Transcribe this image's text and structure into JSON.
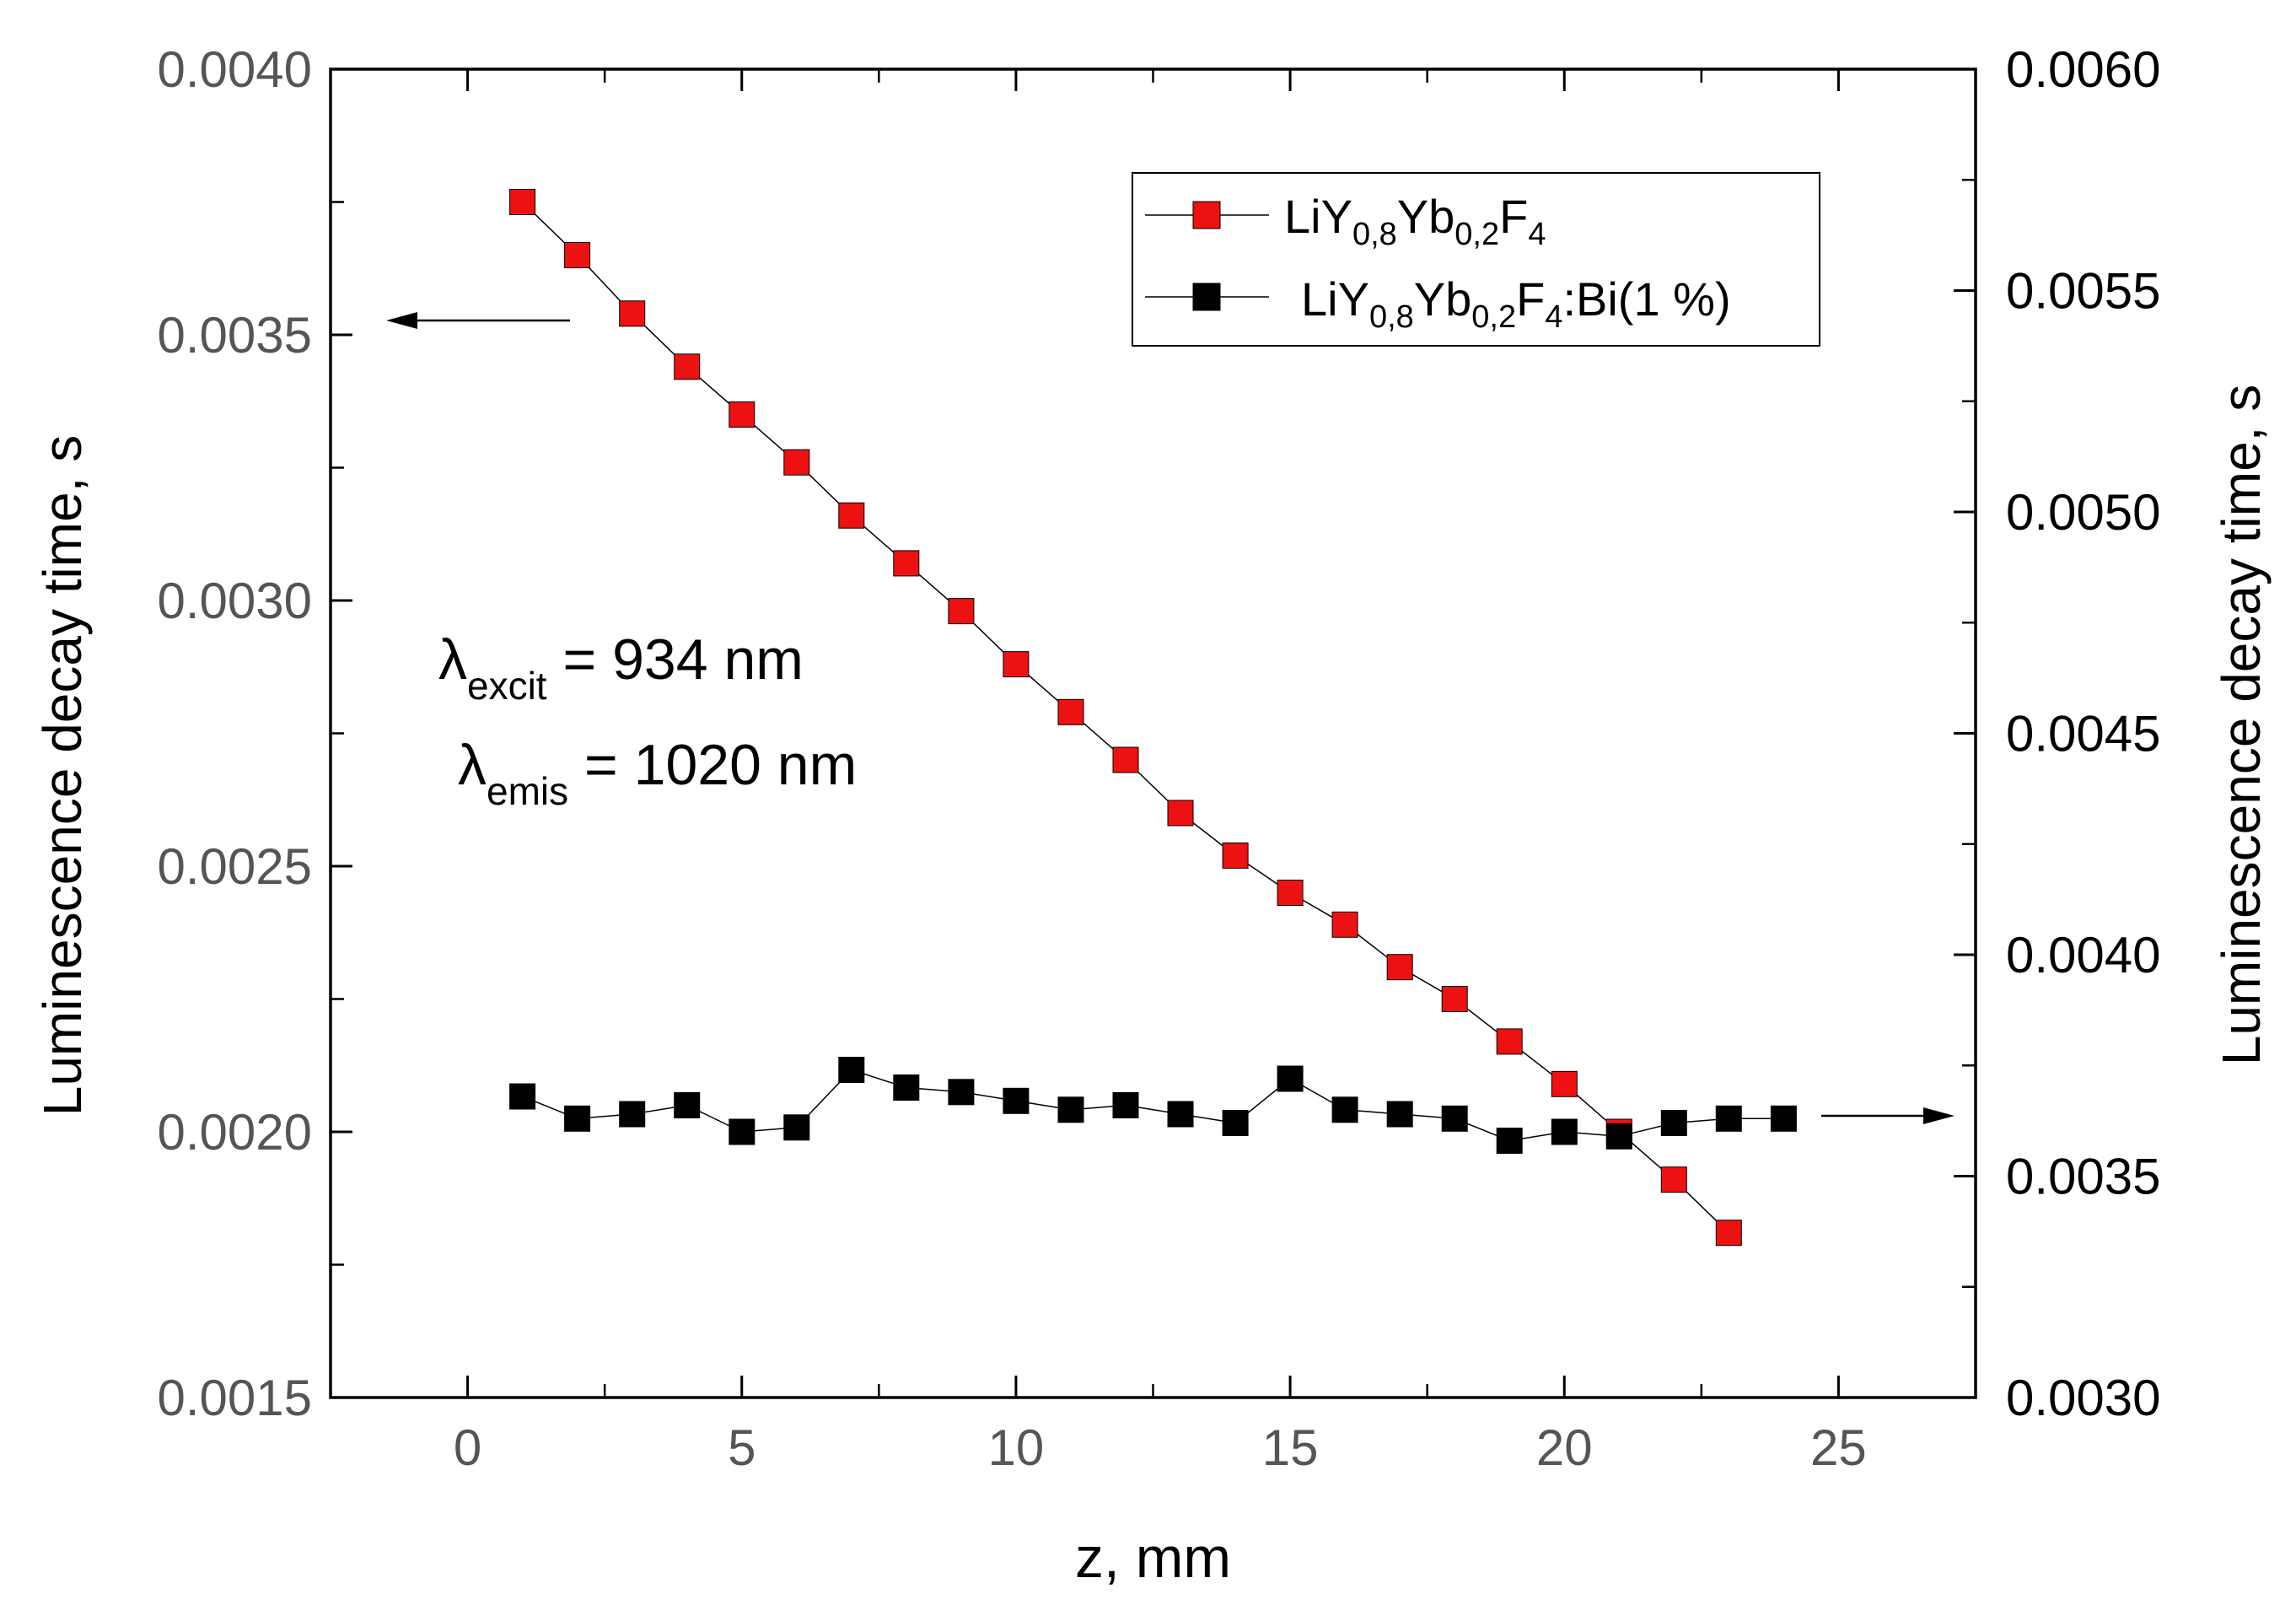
{
  "chart_data": {
    "type": "scatter",
    "xlabel": "z, mm",
    "ylabel_left": "Luminescence decay time, s",
    "ylabel_right": "Luminescence decay time, s",
    "xlim": [
      -2.5,
      27.5
    ],
    "ylim_left": [
      0.0015,
      0.004
    ],
    "ylim_right": [
      0.003,
      0.006
    ],
    "x_ticks": [
      "0",
      "5",
      "10",
      "15",
      "20",
      "25"
    ],
    "y_ticks_left": [
      "0.0015",
      "0.0020",
      "0.0025",
      "0.0030",
      "0.0035",
      "0.0040"
    ],
    "y_ticks_right": [
      "0.0030",
      "0.0035",
      "0.0040",
      "0.0045",
      "0.0050",
      "0.0055",
      "0.0060"
    ],
    "series": [
      {
        "name_parts": [
          "LiY",
          "0,8",
          "Yb",
          "0,2",
          "F",
          "4",
          ""
        ],
        "axis": "left",
        "color": "#ee1111",
        "x": [
          1,
          2,
          3,
          4,
          5,
          6,
          7,
          8,
          9,
          10,
          11,
          12,
          13,
          14,
          15,
          16,
          17,
          18,
          19,
          20,
          21,
          22,
          23
        ],
        "y": [
          0.00375,
          0.00365,
          0.00354,
          0.00344,
          0.00335,
          0.00326,
          0.00316,
          0.00307,
          0.00298,
          0.00288,
          0.00279,
          0.0027,
          0.0026,
          0.00252,
          0.00245,
          0.00239,
          0.00231,
          0.00225,
          0.00217,
          0.00209,
          0.002,
          0.00191,
          0.00181
        ]
      },
      {
        "name_parts": [
          "LiY",
          "0,8",
          "Yb",
          "0,2",
          "F",
          "4",
          ":Bi(1 %)"
        ],
        "axis": "right",
        "color": "#000000",
        "x": [
          1,
          2,
          3,
          4,
          5,
          6,
          7,
          8,
          9,
          10,
          11,
          12,
          13,
          14,
          15,
          16,
          17,
          18,
          19,
          20,
          21,
          22,
          23,
          24
        ],
        "y": [
          0.00368,
          0.00363,
          0.00364,
          0.00366,
          0.0036,
          0.00361,
          0.00374,
          0.0037,
          0.00369,
          0.00367,
          0.00365,
          0.00366,
          0.00364,
          0.00362,
          0.00372,
          0.00365,
          0.00364,
          0.00363,
          0.00358,
          0.0036,
          0.00359,
          0.00362,
          0.00363,
          0.00363
        ]
      }
    ],
    "annotations": [
      {
        "symbol": "λ",
        "sub": "excit",
        "text": " = 934 nm"
      },
      {
        "symbol": "λ",
        "sub": "emis",
        "text": " = 1020 nm"
      }
    ],
    "legend_position": "top-right"
  }
}
